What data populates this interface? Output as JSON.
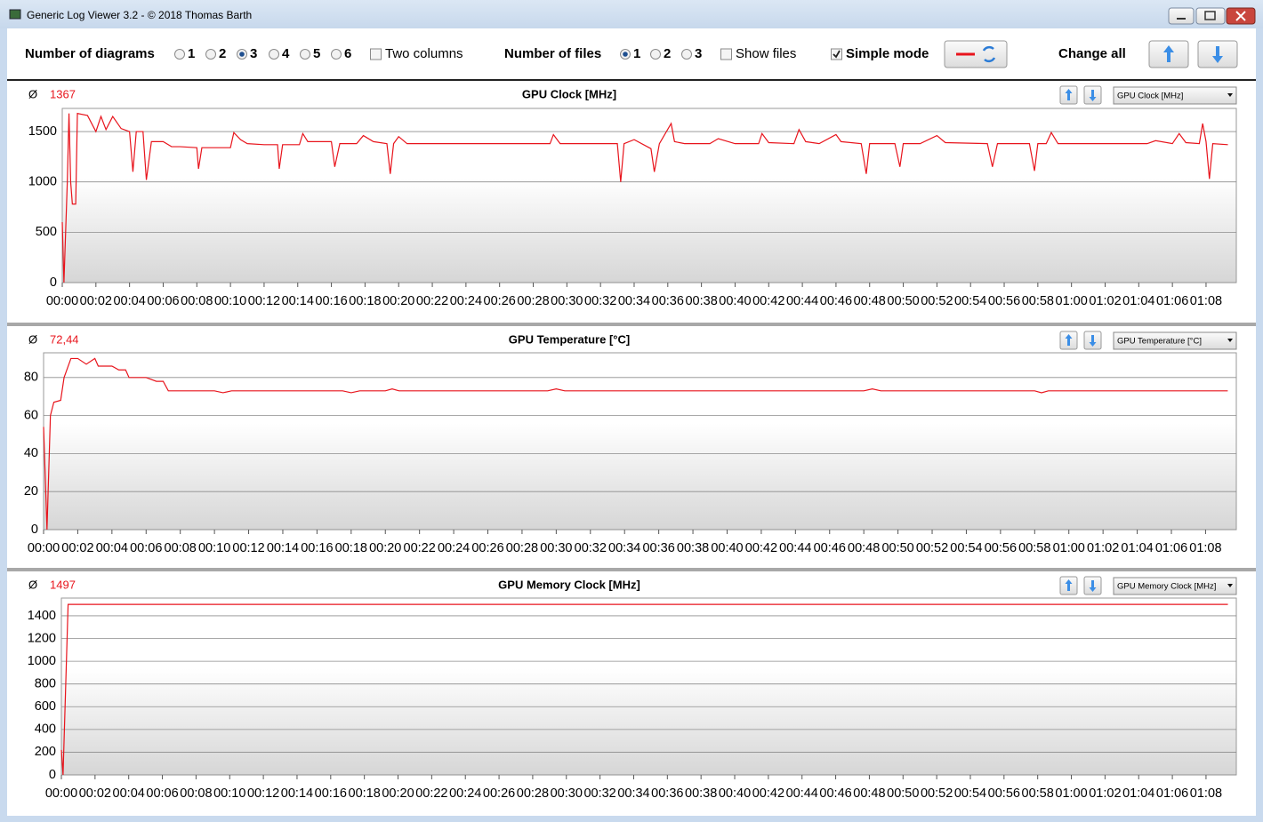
{
  "window": {
    "title": "Generic Log Viewer 3.2 - © 2018 Thomas Barth"
  },
  "toolbar": {
    "diagrams_label": "Number of diagrams",
    "diagram_options": [
      "1",
      "2",
      "3",
      "4",
      "5",
      "6"
    ],
    "diagrams_selected": 2,
    "two_columns": {
      "label": "Two columns",
      "checked": false
    },
    "files_label": "Number of files",
    "file_options": [
      "1",
      "2",
      "3"
    ],
    "files_selected": 0,
    "show_files": {
      "label": "Show files",
      "checked": false
    },
    "simple_mode": {
      "label": "Simple mode",
      "checked": true
    },
    "change_all": "Change all"
  },
  "chart_data": [
    {
      "type": "line",
      "title": "GPU Clock [MHz]",
      "avg_symbol": "Ø",
      "avg": "1367",
      "selector": "GPU Clock [MHz]",
      "color": "#e8141c",
      "x": [
        0,
        0.1,
        0.3,
        0.4,
        0.5,
        0.6,
        0.8,
        0.9,
        1.5,
        2.0,
        2.3,
        2.6,
        3.0,
        3.5,
        4.0,
        4.2,
        4.4,
        4.8,
        5.0,
        5.3,
        6.0,
        6.5,
        7.0,
        8.0,
        8.1,
        8.3,
        10.0,
        10.2,
        10.6,
        11.0,
        12.0,
        12.8,
        12.9,
        13.1,
        14.1,
        14.3,
        14.6,
        16.0,
        16.2,
        16.5,
        17.5,
        17.9,
        18.5,
        19.3,
        19.5,
        19.7,
        20.0,
        20.5,
        29.0,
        29.2,
        29.6,
        33.0,
        33.2,
        33.4,
        34.0,
        35.0,
        35.2,
        35.5,
        36.2,
        36.4,
        37.0,
        38.5,
        39.0,
        40.0,
        41.4,
        41.6,
        42.0,
        43.5,
        43.8,
        44.2,
        45.0,
        46.0,
        46.3,
        47.5,
        47.8,
        48.0,
        49.5,
        49.8,
        50.0,
        51.0,
        52.0,
        52.5,
        55.0,
        55.3,
        55.6,
        57.5,
        57.8,
        58.0,
        58.5,
        58.8,
        59.2,
        64.5,
        65.0,
        66.0,
        66.4,
        66.8,
        67.6,
        67.8,
        68.0,
        68.2,
        68.4,
        69.3
      ],
      "values": [
        600,
        0,
        1000,
        1680,
        1000,
        780,
        780,
        1680,
        1660,
        1500,
        1650,
        1520,
        1650,
        1530,
        1500,
        1100,
        1500,
        1500,
        1020,
        1400,
        1400,
        1350,
        1350,
        1340,
        1130,
        1340,
        1340,
        1490,
        1420,
        1380,
        1370,
        1370,
        1130,
        1370,
        1370,
        1480,
        1400,
        1400,
        1150,
        1380,
        1380,
        1460,
        1400,
        1380,
        1080,
        1380,
        1450,
        1380,
        1380,
        1470,
        1380,
        1380,
        1000,
        1380,
        1420,
        1330,
        1100,
        1380,
        1580,
        1400,
        1380,
        1380,
        1430,
        1380,
        1380,
        1480,
        1390,
        1380,
        1520,
        1400,
        1380,
        1470,
        1400,
        1380,
        1080,
        1380,
        1380,
        1150,
        1380,
        1380,
        1460,
        1390,
        1380,
        1150,
        1380,
        1380,
        1110,
        1380,
        1380,
        1490,
        1380,
        1380,
        1410,
        1380,
        1480,
        1390,
        1380,
        1580,
        1400,
        1030,
        1380,
        1370
      ],
      "ylim": [
        0,
        1730
      ],
      "yticks": [
        0,
        500,
        1000,
        1500
      ],
      "xlim": [
        0,
        69.8
      ],
      "xticks": [
        {
          "value": 0,
          "label": "00:00"
        },
        {
          "value": 2,
          "label": "00:02"
        },
        {
          "value": 4,
          "label": "00:04"
        },
        {
          "value": 6,
          "label": "00:06"
        },
        {
          "value": 8,
          "label": "00:08"
        },
        {
          "value": 10,
          "label": "00:10"
        },
        {
          "value": 12,
          "label": "00:12"
        },
        {
          "value": 14,
          "label": "00:14"
        },
        {
          "value": 16,
          "label": "00:16"
        },
        {
          "value": 18,
          "label": "00:18"
        },
        {
          "value": 20,
          "label": "00:20"
        },
        {
          "value": 22,
          "label": "00:22"
        },
        {
          "value": 24,
          "label": "00:24"
        },
        {
          "value": 26,
          "label": "00:26"
        },
        {
          "value": 28,
          "label": "00:28"
        },
        {
          "value": 30,
          "label": "00:30"
        },
        {
          "value": 32,
          "label": "00:32"
        },
        {
          "value": 34,
          "label": "00:34"
        },
        {
          "value": 36,
          "label": "00:36"
        },
        {
          "value": 38,
          "label": "00:38"
        },
        {
          "value": 40,
          "label": "00:40"
        },
        {
          "value": 42,
          "label": "00:42"
        },
        {
          "value": 44,
          "label": "00:44"
        },
        {
          "value": 46,
          "label": "00:46"
        },
        {
          "value": 48,
          "label": "00:48"
        },
        {
          "value": 50,
          "label": "00:50"
        },
        {
          "value": 52,
          "label": "00:52"
        },
        {
          "value": 54,
          "label": "00:54"
        },
        {
          "value": 56,
          "label": "00:56"
        },
        {
          "value": 58,
          "label": "00:58"
        },
        {
          "value": 60,
          "label": "01:00"
        },
        {
          "value": 62,
          "label": "01:02"
        },
        {
          "value": 64,
          "label": "01:04"
        },
        {
          "value": 66,
          "label": "01:06"
        },
        {
          "value": 68,
          "label": "01:08"
        }
      ],
      "grid": true
    },
    {
      "type": "line",
      "title": "GPU Temperature [°C]",
      "avg_symbol": "Ø",
      "avg": "72,44",
      "selector": "GPU Temperature [°C]",
      "color": "#e8141c",
      "x": [
        0,
        0.2,
        0.4,
        0.6,
        1.0,
        1.2,
        1.6,
        2.0,
        2.5,
        3.0,
        3.2,
        4.0,
        4.4,
        4.8,
        5.0,
        6.0,
        6.6,
        7.0,
        7.3,
        10.0,
        10.5,
        11.0,
        17.5,
        18.0,
        18.5,
        20.0,
        20.4,
        20.8,
        29.5,
        30.0,
        30.5,
        48.0,
        48.5,
        49.0,
        58.0,
        58.4,
        58.8,
        69.3
      ],
      "values": [
        54,
        0,
        60,
        67,
        68,
        80,
        90,
        90,
        87,
        90,
        86,
        86,
        84,
        84,
        80,
        80,
        78,
        78,
        73,
        73,
        72,
        73,
        73,
        72,
        73,
        73,
        74,
        73,
        73,
        74,
        73,
        73,
        74,
        73,
        73,
        72,
        73,
        73
      ],
      "ylim": [
        0,
        93
      ],
      "yticks": [
        0,
        20,
        40,
        60,
        80
      ],
      "xlim": [
        0,
        69.8
      ],
      "xticks": [
        {
          "value": 0,
          "label": "00:00"
        },
        {
          "value": 2,
          "label": "00:02"
        },
        {
          "value": 4,
          "label": "00:04"
        },
        {
          "value": 6,
          "label": "00:06"
        },
        {
          "value": 8,
          "label": "00:08"
        },
        {
          "value": 10,
          "label": "00:10"
        },
        {
          "value": 12,
          "label": "00:12"
        },
        {
          "value": 14,
          "label": "00:14"
        },
        {
          "value": 16,
          "label": "00:16"
        },
        {
          "value": 18,
          "label": "00:18"
        },
        {
          "value": 20,
          "label": "00:20"
        },
        {
          "value": 22,
          "label": "00:22"
        },
        {
          "value": 24,
          "label": "00:24"
        },
        {
          "value": 26,
          "label": "00:26"
        },
        {
          "value": 28,
          "label": "00:28"
        },
        {
          "value": 30,
          "label": "00:30"
        },
        {
          "value": 32,
          "label": "00:32"
        },
        {
          "value": 34,
          "label": "00:34"
        },
        {
          "value": 36,
          "label": "00:36"
        },
        {
          "value": 38,
          "label": "00:38"
        },
        {
          "value": 40,
          "label": "00:40"
        },
        {
          "value": 42,
          "label": "00:42"
        },
        {
          "value": 44,
          "label": "00:44"
        },
        {
          "value": 46,
          "label": "00:46"
        },
        {
          "value": 48,
          "label": "00:48"
        },
        {
          "value": 50,
          "label": "00:50"
        },
        {
          "value": 52,
          "label": "00:52"
        },
        {
          "value": 54,
          "label": "00:54"
        },
        {
          "value": 56,
          "label": "00:56"
        },
        {
          "value": 58,
          "label": "00:58"
        },
        {
          "value": 60,
          "label": "01:00"
        },
        {
          "value": 62,
          "label": "01:02"
        },
        {
          "value": 64,
          "label": "01:04"
        },
        {
          "value": 66,
          "label": "01:06"
        },
        {
          "value": 68,
          "label": "01:08"
        }
      ],
      "grid": true
    },
    {
      "type": "line",
      "title": "GPU Memory Clock [MHz]",
      "avg_symbol": "Ø",
      "avg": "1497",
      "selector": "GPU Memory Clock [MHz]",
      "color": "#e8141c",
      "x": [
        0,
        0.1,
        0.4,
        69.3
      ],
      "values": [
        220,
        0,
        1500,
        1500
      ],
      "ylim": [
        0,
        1556
      ],
      "yticks": [
        0,
        200,
        400,
        600,
        800,
        1000,
        1200,
        1400
      ],
      "xlim": [
        0,
        69.8
      ],
      "xticks": [
        {
          "value": 0,
          "label": "00:00"
        },
        {
          "value": 2,
          "label": "00:02"
        },
        {
          "value": 4,
          "label": "00:04"
        },
        {
          "value": 6,
          "label": "00:06"
        },
        {
          "value": 8,
          "label": "00:08"
        },
        {
          "value": 10,
          "label": "00:10"
        },
        {
          "value": 12,
          "label": "00:12"
        },
        {
          "value": 14,
          "label": "00:14"
        },
        {
          "value": 16,
          "label": "00:16"
        },
        {
          "value": 18,
          "label": "00:18"
        },
        {
          "value": 20,
          "label": "00:20"
        },
        {
          "value": 22,
          "label": "00:22"
        },
        {
          "value": 24,
          "label": "00:24"
        },
        {
          "value": 26,
          "label": "00:26"
        },
        {
          "value": 28,
          "label": "00:28"
        },
        {
          "value": 30,
          "label": "00:30"
        },
        {
          "value": 32,
          "label": "00:32"
        },
        {
          "value": 34,
          "label": "00:34"
        },
        {
          "value": 36,
          "label": "00:36"
        },
        {
          "value": 38,
          "label": "00:38"
        },
        {
          "value": 40,
          "label": "00:40"
        },
        {
          "value": 42,
          "label": "00:42"
        },
        {
          "value": 44,
          "label": "00:44"
        },
        {
          "value": 46,
          "label": "00:46"
        },
        {
          "value": 48,
          "label": "00:48"
        },
        {
          "value": 50,
          "label": "00:50"
        },
        {
          "value": 52,
          "label": "00:52"
        },
        {
          "value": 54,
          "label": "00:54"
        },
        {
          "value": 56,
          "label": "00:56"
        },
        {
          "value": 58,
          "label": "00:58"
        },
        {
          "value": 60,
          "label": "01:00"
        },
        {
          "value": 62,
          "label": "01:02"
        },
        {
          "value": 64,
          "label": "01:04"
        },
        {
          "value": 66,
          "label": "01:06"
        },
        {
          "value": 68,
          "label": "01:08"
        }
      ],
      "grid": true
    }
  ]
}
